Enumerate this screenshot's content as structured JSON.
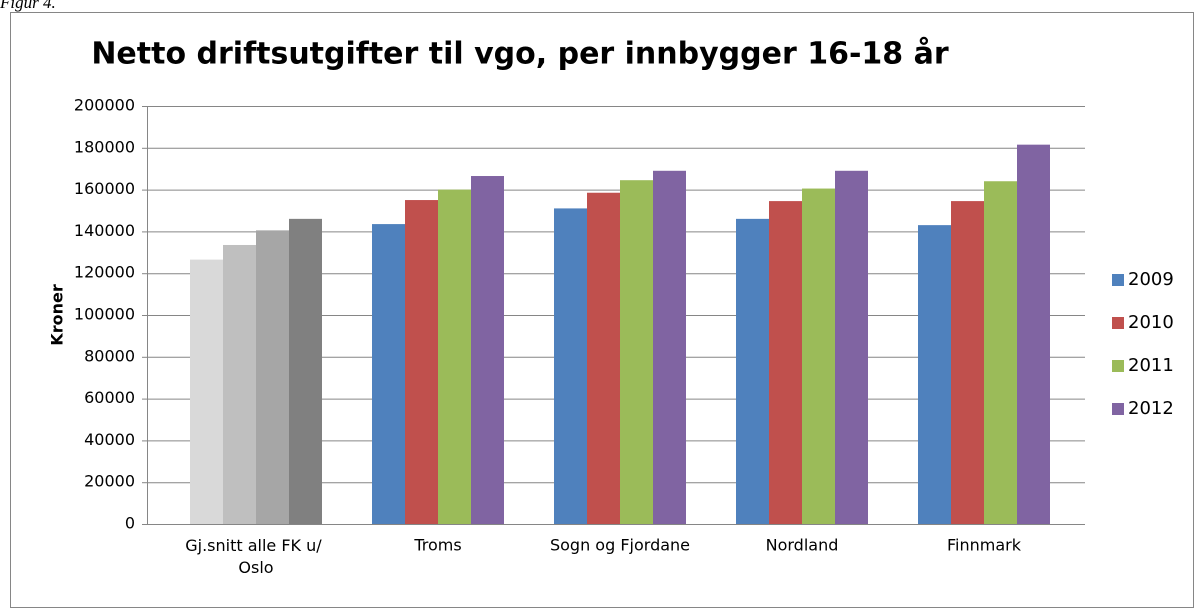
{
  "caption": "Figur 4.",
  "chart_data": {
    "type": "bar",
    "title": "Netto driftsutgifter til vgo, per innbygger 16-18 år",
    "ylabel": "Kroner",
    "categories": [
      "Gj.snitt alle FK u/ Oslo",
      "Troms",
      "Sogn og Fjordane",
      "Nordland",
      "Finnmark"
    ],
    "series": [
      {
        "name": "2009",
        "color": "#4f81bd",
        "colors": [
          "#d9d9d9",
          "#4f81bd",
          "#4f81bd",
          "#4f81bd",
          "#4f81bd"
        ],
        "values": [
          126500,
          143500,
          151000,
          146000,
          143000
        ]
      },
      {
        "name": "2010",
        "color": "#c0504d",
        "colors": [
          "#bfbfbf",
          "#c0504d",
          "#c0504d",
          "#c0504d",
          "#c0504d"
        ],
        "values": [
          133500,
          155000,
          158500,
          154500,
          154500
        ]
      },
      {
        "name": "2011",
        "color": "#9bbb59",
        "colors": [
          "#a6a6a6",
          "#9bbb59",
          "#9bbb59",
          "#9bbb59",
          "#9bbb59"
        ],
        "values": [
          140500,
          160000,
          164500,
          160500,
          164000
        ]
      },
      {
        "name": "2012",
        "color": "#8064a2",
        "colors": [
          "#808080",
          "#8064a2",
          "#8064a2",
          "#8064a2",
          "#8064a2"
        ],
        "values": [
          146000,
          166500,
          169000,
          169000,
          181500
        ]
      }
    ],
    "ylim": [
      0,
      200000
    ],
    "yticks": [
      0,
      20000,
      40000,
      60000,
      80000,
      100000,
      120000,
      140000,
      160000,
      180000,
      200000
    ],
    "grid": true,
    "legend": "right"
  }
}
